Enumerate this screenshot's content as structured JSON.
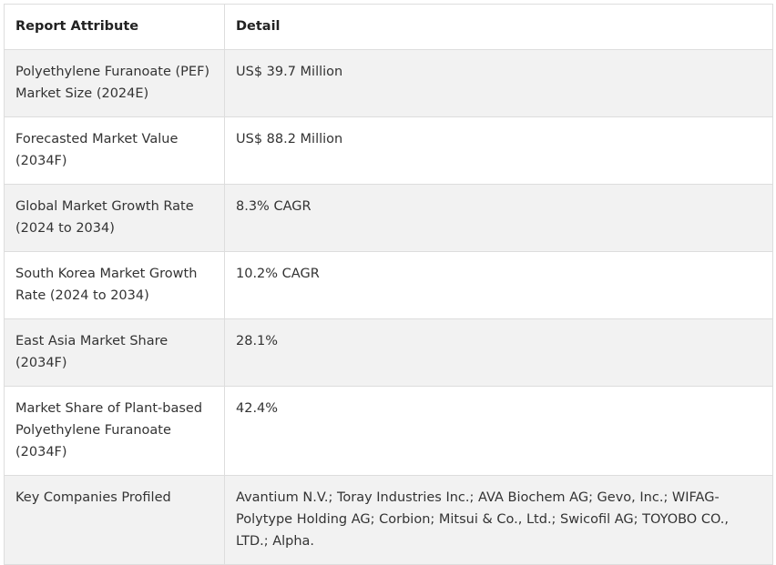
{
  "table": {
    "headers": [
      "Report Attribute",
      "Detail"
    ],
    "rows": [
      [
        "Polyethylene Furanoate (PEF) Market Size (2024E)",
        "US$ 39.7 Million"
      ],
      [
        "Forecasted Market Value (2034F)",
        "US$ 88.2 Million"
      ],
      [
        "Global Market Growth Rate (2024 to 2034)",
        "8.3% CAGR"
      ],
      [
        "South Korea Market Growth Rate (2024 to 2034)",
        "10.2% CAGR"
      ],
      [
        "East Asia Market Share (2034F)",
        "28.1%"
      ],
      [
        "Market Share of Plant-based Polyethylene Furanoate (2034F)",
        "42.4%"
      ],
      [
        "Key Companies Profiled",
        "Avantium N.V.; Toray Industries Inc.; AVA Biochem AG; Gevo, Inc.; WIFAG-Polytype Holding AG; Corbion; Mitsui & Co., Ltd.; Swicofil AG; TOYOBO CO., LTD.; Alpha."
      ]
    ]
  }
}
